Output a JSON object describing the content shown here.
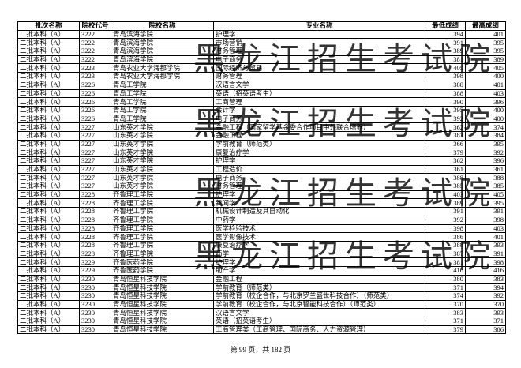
{
  "table": {
    "header": [
      "批次名称",
      "院校代号",
      "院校名称",
      "专业名称",
      "最低成绩",
      "最高成绩"
    ],
    "rows": [
      [
        "二批本科（A）",
        "3222",
        "青岛滨海学院",
        "护理学",
        "394",
        "401"
      ],
      [
        "二批本科（A）",
        "3222",
        "青岛滨海学院",
        "市场营销",
        "391",
        "395"
      ],
      [
        "二批本科（A）",
        "3222",
        "青岛滨海学院",
        "财务管理",
        "389",
        "395"
      ],
      [
        "二批本科（A）",
        "3222",
        "青岛滨海学院",
        "电子商务",
        "381",
        "389"
      ],
      [
        "二批本科（A）",
        "3223",
        "青岛农业大学海都学院",
        "国际经济与贸易",
        "405",
        "405"
      ],
      [
        "二批本科（A）",
        "3223",
        "青岛农业大学海都学院",
        "财务管理",
        "398",
        "400"
      ],
      [
        "二批本科（A）",
        "3226",
        "青岛工学院",
        "汉语言文学",
        "388",
        "401"
      ],
      [
        "二批本科（A）",
        "3226",
        "青岛工学院",
        "英语（招英语考生）",
        "388",
        "403"
      ],
      [
        "二批本科（A）",
        "3226",
        "青岛工学院",
        "工商管理",
        "390",
        "396"
      ],
      [
        "二批本科（A）",
        "3226",
        "青岛工学院",
        "会计学",
        "395",
        "400"
      ],
      [
        "二批本科（A）",
        "3226",
        "青岛工学院",
        "电子商务",
        "392",
        "400"
      ],
      [
        "二批本科（A）",
        "3227",
        "山东英才学院",
        "金融工程（国家留学基金委合作项目中外联合培养）",
        "362",
        "374"
      ],
      [
        "二批本科（A）",
        "3227",
        "山东英才学院",
        "金融工程",
        "383",
        "384"
      ],
      [
        "二批本科（A）",
        "3227",
        "山东英才学院",
        "学前教育（师范类）",
        "366",
        "395"
      ],
      [
        "二批本科（A）",
        "3227",
        "山东英才学院",
        "康复治疗学",
        "379",
        "392"
      ],
      [
        "二批本科（A）",
        "3227",
        "山东英才学院",
        "护理学",
        "362",
        "396"
      ],
      [
        "二批本科（A）",
        "3227",
        "山东英才学院",
        "工程造价",
        "361",
        "361"
      ],
      [
        "二批本科（A）",
        "3227",
        "山东英才学院",
        "电子商务",
        "388",
        "388"
      ],
      [
        "二批本科（A）",
        "3227",
        "山东英才学院",
        "财务管理",
        "385",
        "385"
      ],
      [
        "二批本科（A）",
        "3228",
        "齐鲁理工学院",
        "护理学",
        "403",
        "405"
      ],
      [
        "二批本科（A）",
        "3228",
        "齐鲁理工学院",
        "新闻学",
        "389",
        "395"
      ],
      [
        "二批本科（A）",
        "3228",
        "齐鲁理工学院",
        "机械设计制造及其自动化",
        "391",
        "391"
      ],
      [
        "二批本科（A）",
        "3228",
        "齐鲁理工学院",
        "中药学",
        "392",
        "398"
      ],
      [
        "二批本科（A）",
        "3228",
        "齐鲁理工学院",
        "医学检验技术",
        "398",
        "403"
      ],
      [
        "二批本科（A）",
        "3228",
        "齐鲁理工学院",
        "医学影像技术",
        "386",
        "401"
      ],
      [
        "二批本科（A）",
        "3228",
        "齐鲁理工学院",
        "康复治疗学",
        "388",
        "393"
      ],
      [
        "二批本科（A）",
        "3228",
        "齐鲁理工学院",
        "药学",
        "387",
        "391"
      ],
      [
        "二批本科（A）",
        "3229",
        "齐鲁医药学院",
        "护理学",
        "381",
        "398"
      ],
      [
        "二批本科（A）",
        "3229",
        "齐鲁医药学院",
        "助产学",
        "416",
        "416"
      ],
      [
        "二批本科（A）",
        "3230",
        "青岛恒星科技学院",
        "金融工程",
        "380",
        "383"
      ],
      [
        "二批本科（A）",
        "3230",
        "青岛恒星科技学院",
        "学前教育（师范类）",
        "371",
        "394"
      ],
      [
        "二批本科（A）",
        "3230",
        "青岛恒星科技学院",
        "学前教育（校企合作，与北京罗兰盛世科技合作）（师范类）",
        "374",
        "392"
      ],
      [
        "二批本科（A）",
        "3230",
        "青岛恒星科技学院",
        "学前教育（校企合作，与北京智能科技合作）（师范类）",
        "370",
        "370"
      ],
      [
        "二批本科（A）",
        "3230",
        "青岛恒星科技学院",
        "汉语言文学",
        "383",
        "393"
      ],
      [
        "二批本科（A）",
        "3230",
        "青岛恒星科技学院",
        "英语（招英语考生）",
        "371",
        "371"
      ],
      [
        "二批本科（A）",
        "3230",
        "青岛恒星科技学院",
        "工商管理类（工商管理、国际商务、人力资源管理）",
        "379",
        "386"
      ]
    ]
  },
  "watermark": "黑龙江招生考试院",
  "footer": "第 99 页，共 182 页"
}
